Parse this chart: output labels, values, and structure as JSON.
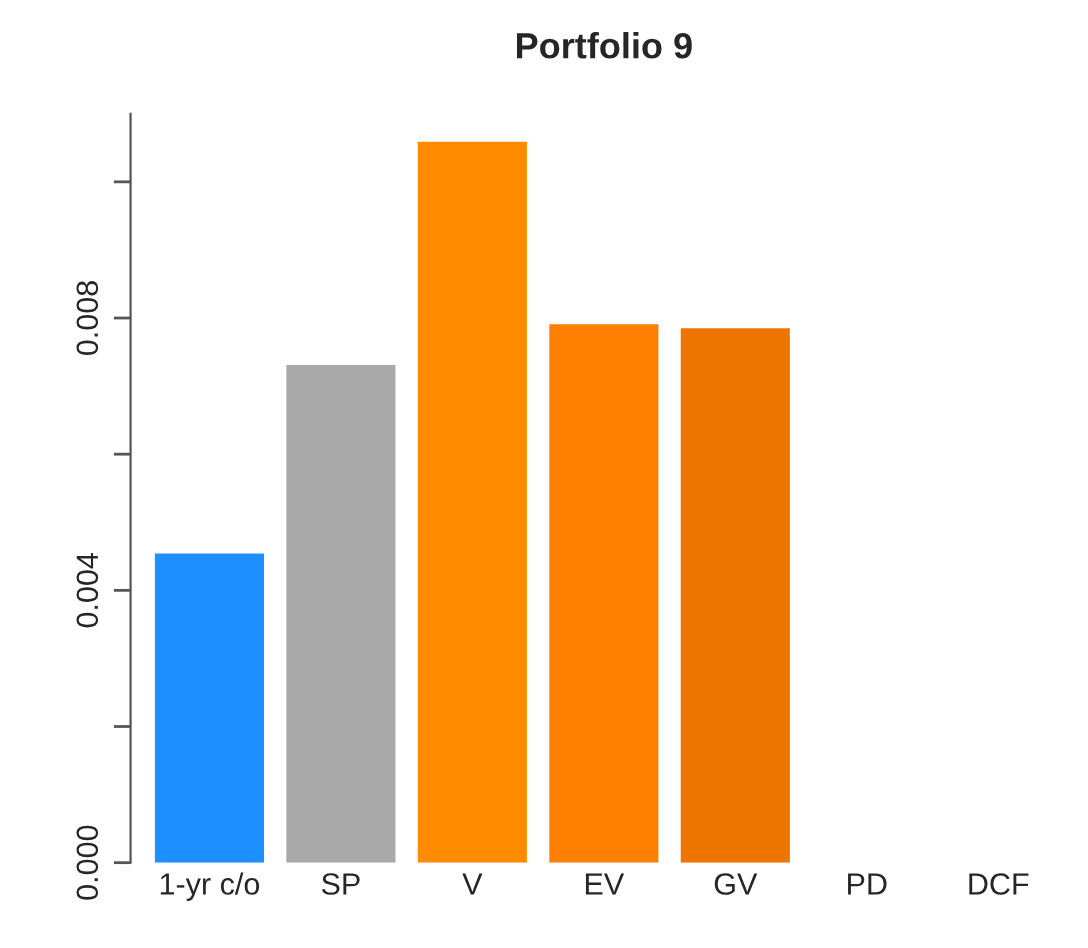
{
  "chart_data": {
    "type": "bar",
    "title": "Portfolio 9",
    "categories": [
      "1-yr c/o",
      "SP",
      "V",
      "EV",
      "GV",
      "PD",
      "DCF"
    ],
    "values": [
      0.00454,
      0.00731,
      0.01059,
      0.00791,
      0.00785,
      0,
      0
    ],
    "colors": [
      "#1e90ff",
      "#a9a9a9",
      "#ff8c00",
      "#ff7f00",
      "#ee7600",
      "#cd6600",
      "#cd6600"
    ],
    "ylim": [
      0,
      0.011
    ],
    "yticks": [
      "0.000",
      {
        "value": 0.002,
        "label": null
      },
      0.004,
      {
        "value": 0.006,
        "label": null
      },
      0.008,
      {
        "value": 0.01,
        "label": null
      }
    ],
    "grid": false
  }
}
